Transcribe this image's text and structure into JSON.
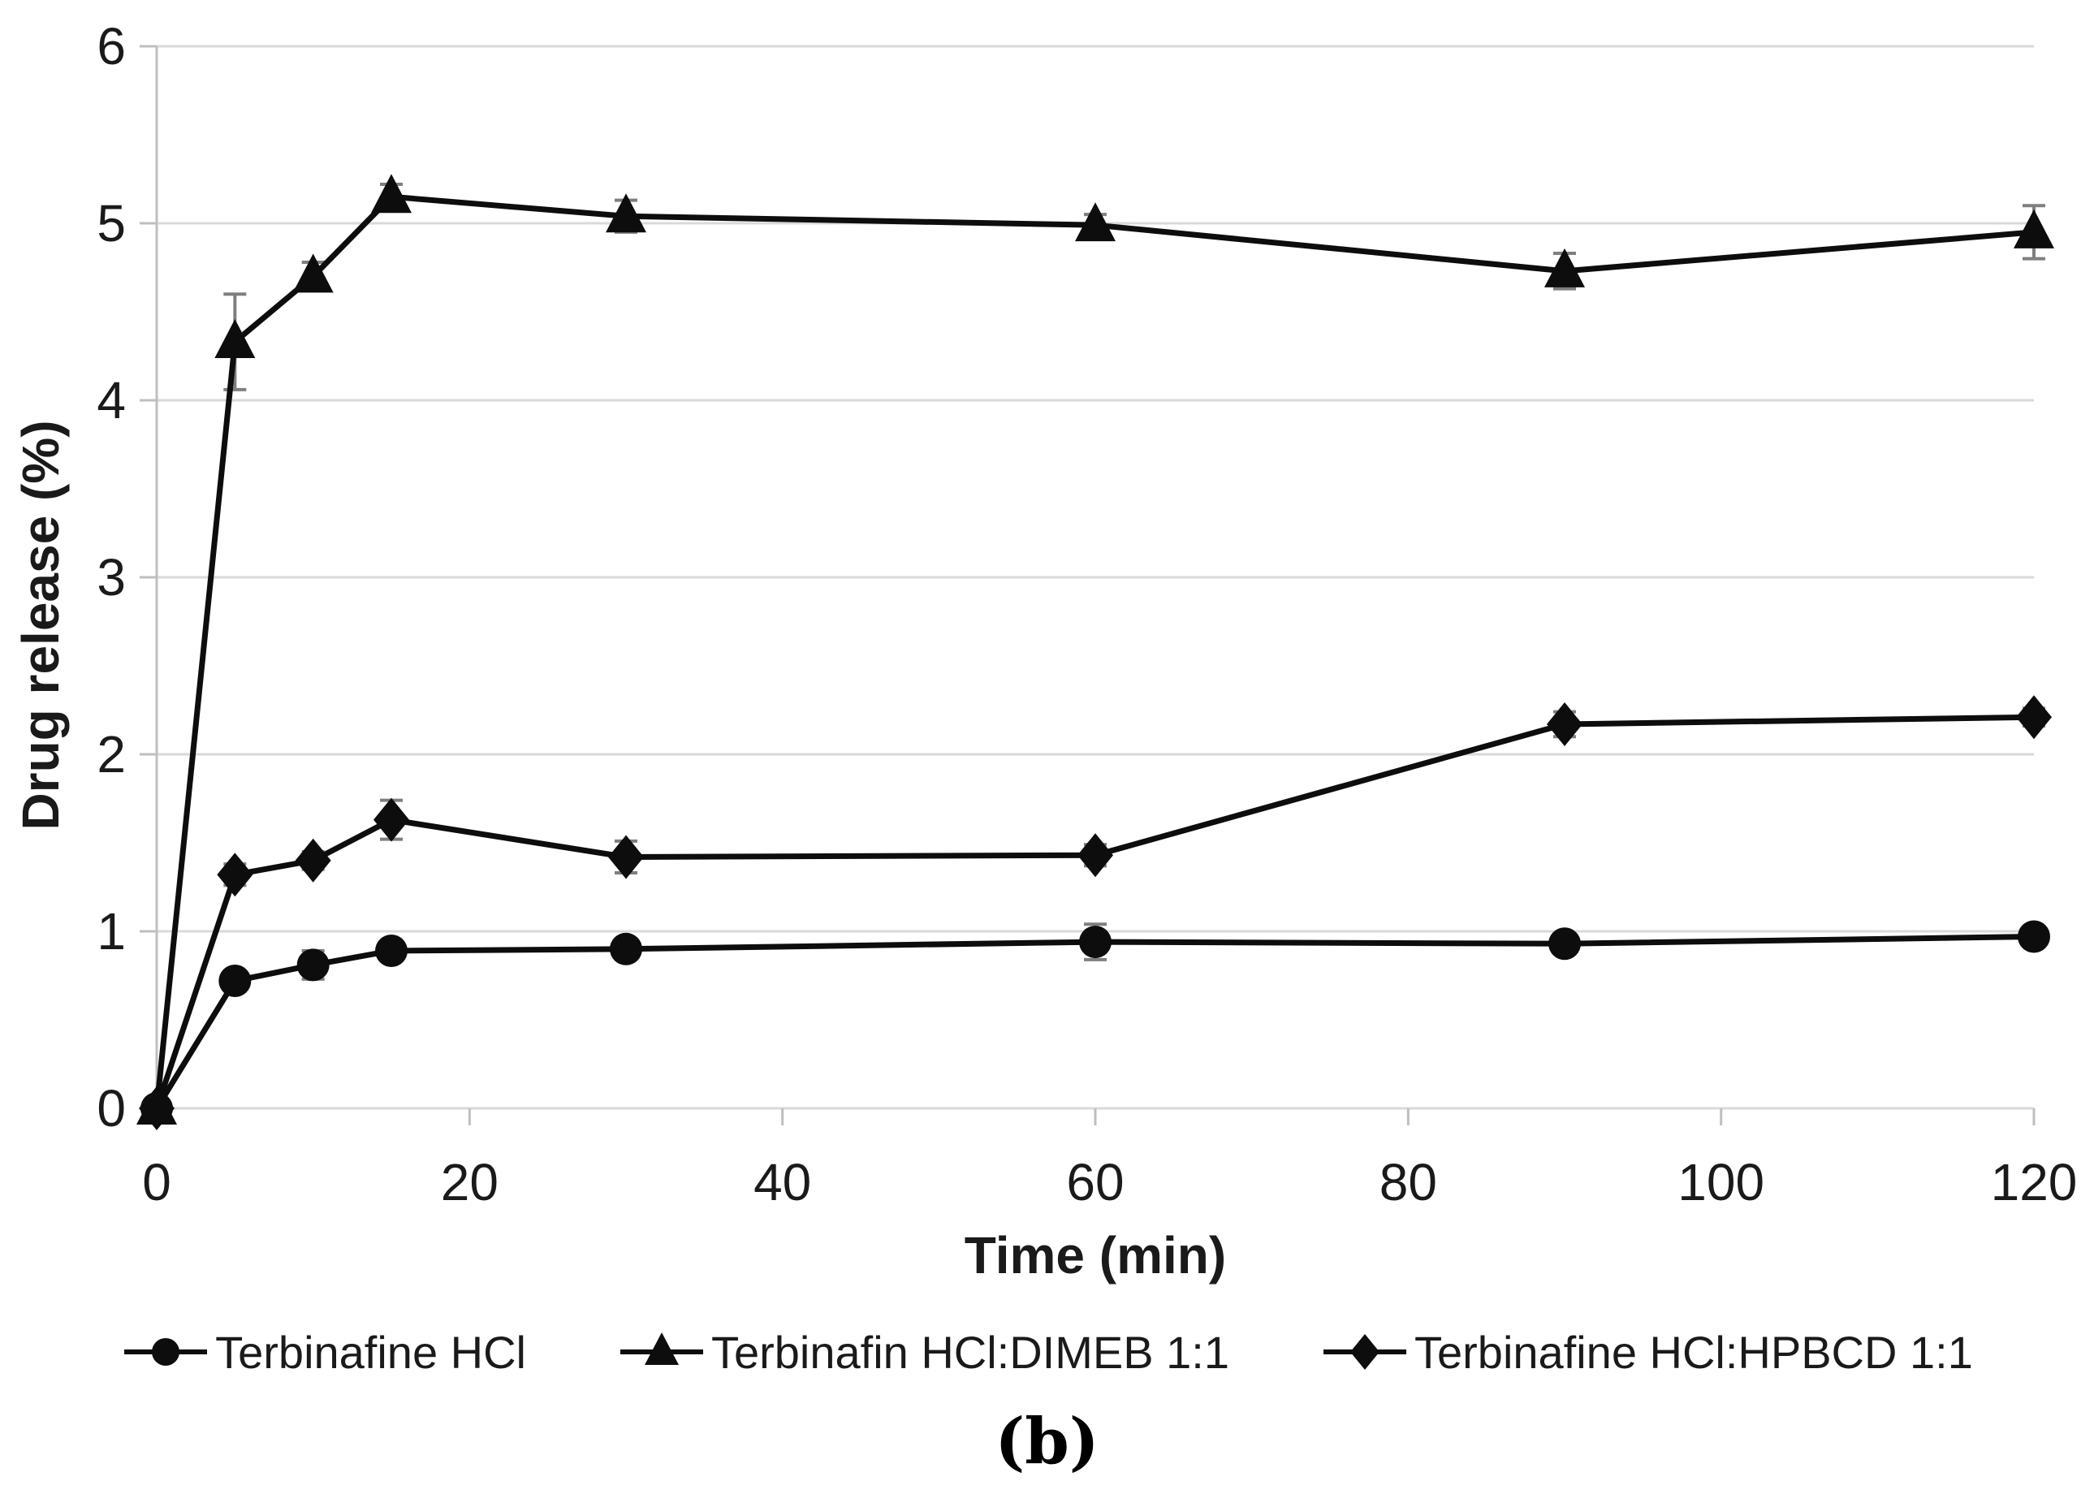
{
  "figure_label": "(b)",
  "axes": {
    "x": {
      "title": "Time (min)",
      "ticks": [
        0,
        20,
        40,
        60,
        80,
        100,
        120
      ]
    },
    "y": {
      "title": "Drug release (%)",
      "ticks": [
        0,
        1,
        2,
        3,
        4,
        5,
        6
      ]
    }
  },
  "chart_data": {
    "type": "line",
    "title": "",
    "xlabel": "Time (min)",
    "ylabel": "Drug release (%)",
    "xlim": [
      0,
      120
    ],
    "ylim": [
      0,
      6
    ],
    "grid": "horizontal",
    "legend_position": "bottom",
    "x": [
      0,
      5,
      10,
      15,
      30,
      60,
      90,
      120
    ],
    "series": [
      {
        "name": "Terbinafine HCl",
        "marker": "circle",
        "values": [
          0,
          0.72,
          0.81,
          0.89,
          0.9,
          0.94,
          0.93,
          0.97
        ],
        "errors": [
          0,
          0.04,
          0.08,
          0.04,
          0.04,
          0.1,
          0.04,
          0.05
        ]
      },
      {
        "name": "Terbinafin HCl:DIMEB 1:1",
        "marker": "triangle",
        "values": [
          0,
          4.33,
          4.7,
          5.15,
          5.04,
          4.99,
          4.73,
          4.95
        ],
        "errors": [
          0,
          0.27,
          0.08,
          0.07,
          0.09,
          0.06,
          0.1,
          0.15
        ]
      },
      {
        "name": "Terbinafine HCl:HPBCD 1:1",
        "marker": "diamond",
        "values": [
          0,
          1.32,
          1.4,
          1.63,
          1.42,
          1.43,
          2.17,
          2.21
        ],
        "errors": [
          0,
          0.06,
          0.05,
          0.11,
          0.09,
          0.06,
          0.07,
          0.05
        ]
      }
    ]
  },
  "colors": {
    "series": "#0d0d0d",
    "gridline": "#d9d9d9",
    "axis": "#bfbfbf",
    "error_bar": "#7f7f7f",
    "text": "#1a1a1a",
    "background": "#ffffff"
  }
}
